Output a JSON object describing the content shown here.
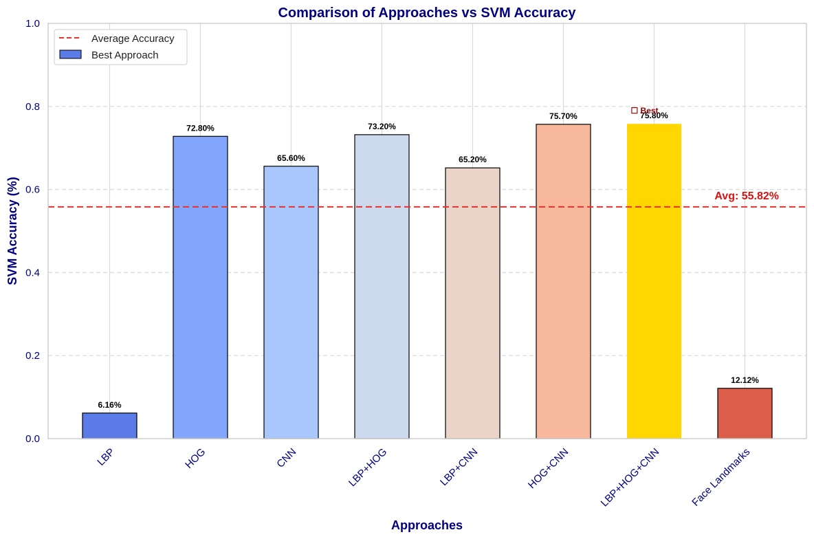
{
  "chart_data": {
    "type": "bar",
    "title": "Comparison of Approaches vs SVM Accuracy",
    "xlabel": "Approaches",
    "ylabel": "SVM Accuracy (%)",
    "ylim": [
      0,
      1
    ],
    "yticks": [
      "0.0",
      "0.2",
      "0.4",
      "0.6",
      "0.8",
      "1.0"
    ],
    "grid": "y-dashed and x",
    "categories": [
      "LBP",
      "HOG",
      "CNN",
      "LBP+HOG",
      "LBP+CNN",
      "HOG+CNN",
      "LBP+HOG+CNN",
      "Face Landmarks"
    ],
    "values": [
      0.0616,
      0.728,
      0.656,
      0.732,
      0.652,
      0.757,
      0.758,
      0.1212
    ],
    "value_labels": [
      "6.16%",
      "72.80%",
      "65.60%",
      "73.20%",
      "65.20%",
      "75.70%",
      "75.80%",
      "12.12%"
    ],
    "bar_colors": [
      "#5b7be6",
      "#82a6fb",
      "#aac7fd",
      "#cdd9ec",
      "#ead4c8",
      "#f7b89c",
      "#ffd700",
      "#dc5d4a"
    ],
    "best_index": 6,
    "best_annotation": "☐ Best",
    "average": 0.5582,
    "average_label": "Avg: 55.82%",
    "legend": {
      "position": "upper-left",
      "items": [
        "Average Accuracy",
        "Best Approach"
      ]
    },
    "colors": {
      "title": "#00007f",
      "axis": "#00007f",
      "average_line": "#e8302f",
      "average_text": "#d81111",
      "best_text": "#8b0000",
      "legend_best_swatch": "#5b7be6",
      "grid": "#d9d9d9"
    }
  }
}
